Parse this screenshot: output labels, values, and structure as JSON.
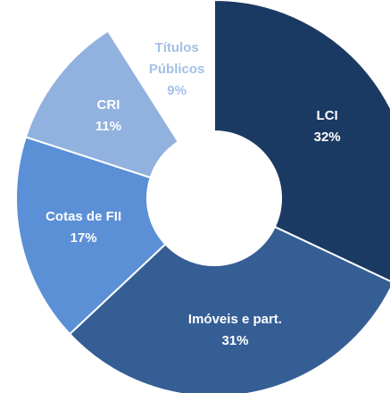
{
  "chart_data": {
    "type": "donut",
    "categories": [
      "LCI",
      "Imóveis e part.",
      "Cotas de FII",
      "CRI",
      "Títulos Públicos"
    ],
    "values": [
      32,
      31,
      17,
      11,
      9
    ],
    "value_labels": [
      "32%",
      "31%",
      "17%",
      "11%",
      "9%"
    ],
    "colors": [
      "#1b3a63",
      "#355e95",
      "#5b8fd6",
      "#91b1de",
      "#ffffff"
    ],
    "label_colors": [
      "#ffffff",
      "#ffffff",
      "#ffffff",
      "#ffffff",
      "#a4c0e6"
    ]
  }
}
